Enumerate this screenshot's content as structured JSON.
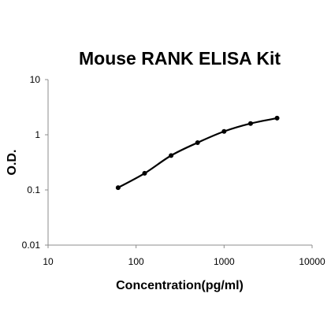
{
  "chart_data": {
    "type": "line",
    "title": "Mouse RANK ELISA Kit",
    "xlabel": "Concentration(pg/ml)",
    "ylabel": "O.D.",
    "x_scale": "log",
    "y_scale": "log",
    "xlim": [
      10,
      10000
    ],
    "ylim": [
      0.01,
      10
    ],
    "x_ticks": [
      "10",
      "100",
      "1000",
      "10000"
    ],
    "y_ticks": [
      "0.01",
      "0.1",
      "1",
      "10"
    ],
    "grid": false,
    "legend": "none",
    "series": [
      {
        "color": "#000000",
        "x": [
          62.5,
          125,
          250,
          500,
          1000,
          2000,
          4000
        ],
        "y": [
          0.11,
          0.2,
          0.42,
          0.72,
          1.15,
          1.6,
          2.0
        ]
      }
    ]
  }
}
